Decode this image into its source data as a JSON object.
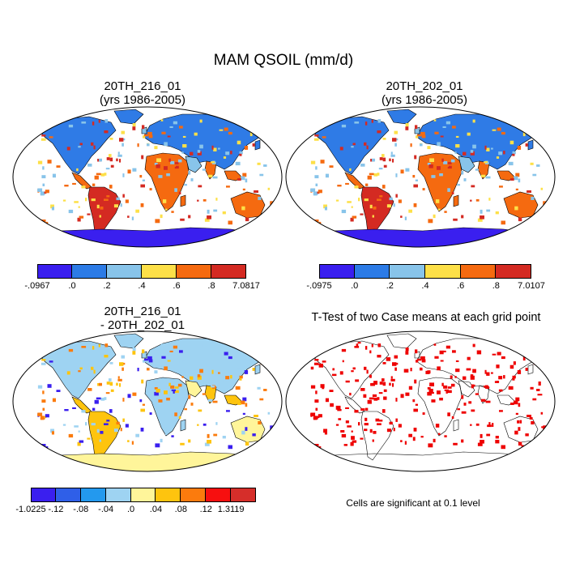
{
  "main_title": "MAM QSOIL (mm/d)",
  "panels": {
    "top_left": {
      "title_line1": "20TH_216_01",
      "title_line2": "(yrs 1986-2005)"
    },
    "top_right": {
      "title_line1": "20TH_202_01",
      "title_line2": "(yrs 1986-2005)"
    },
    "bottom_left": {
      "title_line1": "20TH_216_01",
      "title_line2": "- 20TH_202_01"
    },
    "bottom_right": {
      "title": "T-Test of two Case means at each grid point",
      "note": "Cells are significant at 0.1 level"
    }
  },
  "colorbars": {
    "top_left": {
      "colors": [
        "#3a1fef",
        "#2c7be6",
        "#88c4ea",
        "#fde048",
        "#f56a10",
        "#d42a22"
      ],
      "labels": [
        "-.0967",
        ".0",
        ".2",
        ".4",
        ".6",
        ".8",
        "7.0817"
      ]
    },
    "top_right": {
      "colors": [
        "#3a1fef",
        "#2c7be6",
        "#88c4ea",
        "#fde048",
        "#f56a10",
        "#d42a22"
      ],
      "labels": [
        "-.0975",
        ".0",
        ".2",
        ".4",
        ".6",
        ".8",
        "7.0107"
      ]
    },
    "bottom_left": {
      "colors": [
        "#3a1fef",
        "#2f5fe8",
        "#2399ee",
        "#9ed3f2",
        "#fff59a",
        "#fec40e",
        "#fb7b0d",
        "#f70f0f",
        "#d62e2a"
      ],
      "labels": [
        "-1.0225",
        "-.12",
        "-.08",
        "-.04",
        ".0",
        ".04",
        ".08",
        ".12",
        "1.3119"
      ]
    }
  },
  "colors": {
    "land_abs": "#2f7be6",
    "land_abs_alt": "#88c4ea",
    "warm": "#f56a10",
    "hot": "#d42a22",
    "antarctica": "#3a1fef",
    "diff_land": "#9ed3f2",
    "diff_pos": "#fec40e",
    "diff_neg": "#3a1fef",
    "diff_ant": "#fff59a",
    "sig": "#ee0000"
  }
}
